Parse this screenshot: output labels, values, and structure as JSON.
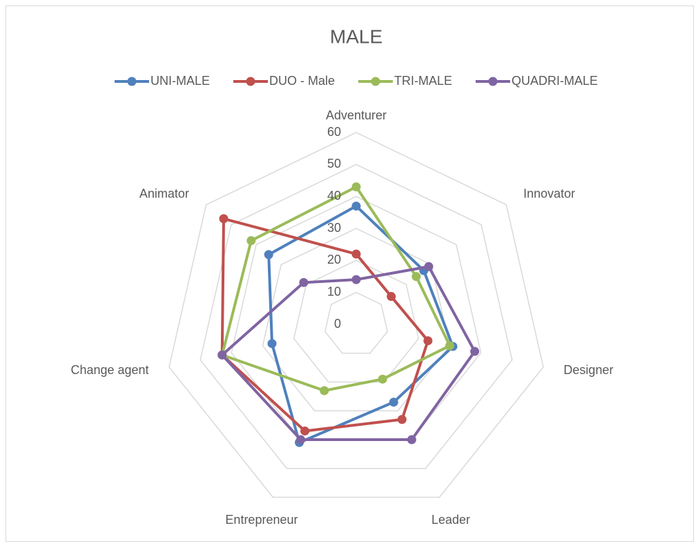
{
  "chart_data": {
    "type": "radar",
    "title": "MALE",
    "categories": [
      "Adventurer",
      "Innovator",
      "Designer",
      "Leader",
      "Entrepreneur",
      "Change agent",
      "Animator"
    ],
    "series": [
      {
        "name": "UNI-MALE",
        "color": "#4f81bd",
        "values": [
          37,
          27,
          31,
          27,
          41,
          27,
          35
        ]
      },
      {
        "name": "DUO - Male",
        "color": "#c0504d",
        "values": [
          22,
          14,
          23,
          33,
          37,
          43,
          53
        ]
      },
      {
        "name": "TRI-MALE",
        "color": "#9bbb59",
        "values": [
          43,
          24,
          30,
          19,
          23,
          43,
          42
        ]
      },
      {
        "name": "QUADRI-MALE",
        "color": "#8064a2",
        "values": [
          14,
          29,
          38,
          40,
          40,
          43,
          21
        ]
      }
    ],
    "ylim": [
      0,
      60
    ],
    "yticks": [
      0,
      10,
      20,
      30,
      40,
      50,
      60
    ],
    "grid": true,
    "legend": "top"
  }
}
